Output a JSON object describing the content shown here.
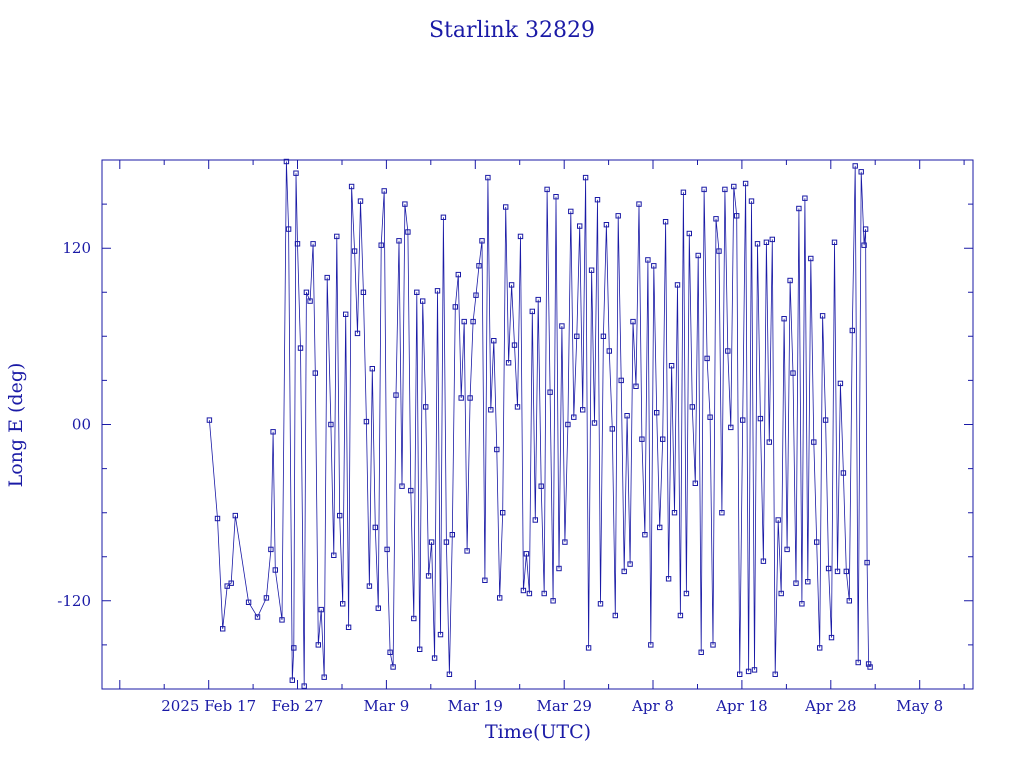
{
  "chart_data": {
    "type": "line",
    "title": "Starlink 32829",
    "xlabel": "Time(UTC)",
    "ylabel": "Long E (deg)",
    "xlim": [
      "2025-02-05",
      "2025-05-14"
    ],
    "ylim": [
      -180,
      180
    ],
    "x_ticks": [
      "2025 Feb 17",
      "Feb 27",
      "Mar 9",
      "Mar 19",
      "Mar 29",
      "Apr 8",
      "Apr 18",
      "Apr 28",
      "May 8"
    ],
    "y_ticks": [
      "-120",
      "00",
      "120"
    ],
    "grid": false,
    "legend": "none",
    "colors": {
      "line": "#1a1aa6",
      "axes": "#1a1aa6",
      "background": "#ffffff"
    },
    "series": [
      {
        "marker": "square",
        "points": [
          [
            "2025-02-17T02:00",
            3
          ],
          [
            "2025-02-18T00:00",
            -64
          ],
          [
            "2025-02-18T14:00",
            -139
          ],
          [
            "2025-02-19T02:00",
            -110
          ],
          [
            "2025-02-19T13:00",
            -108
          ],
          [
            "2025-02-20T00:00",
            -62
          ],
          [
            "2025-02-21T12:00",
            -121
          ],
          [
            "2025-02-22T12:00",
            -131
          ],
          [
            "2025-02-23T12:00",
            -118
          ],
          [
            "2025-02-24T00:00",
            -85
          ],
          [
            "2025-02-24T06:00",
            -5
          ],
          [
            "2025-02-24T12:00",
            -99
          ],
          [
            "2025-02-25T06:00",
            -133
          ],
          [
            "2025-02-25T18:00",
            179
          ],
          [
            "2025-02-26T00:00",
            133
          ],
          [
            "2025-02-26T10:00",
            -174
          ],
          [
            "2025-02-26T14:00",
            -152
          ],
          [
            "2025-02-26T20:00",
            171
          ],
          [
            "2025-02-27T00:00",
            123
          ],
          [
            "2025-02-27T08:00",
            52
          ],
          [
            "2025-02-27T18:00",
            -178
          ],
          [
            "2025-02-28T00:00",
            90
          ],
          [
            "2025-02-28T10:00",
            84
          ],
          [
            "2025-02-28T18:00",
            123
          ],
          [
            "2025-03-01T00:00",
            35
          ],
          [
            "2025-03-01T08:00",
            -150
          ],
          [
            "2025-03-01T16:00",
            -126
          ],
          [
            "2025-03-02T00:00",
            -172
          ],
          [
            "2025-03-02T08:00",
            100
          ],
          [
            "2025-03-02T18:00",
            0
          ],
          [
            "2025-03-03T02:00",
            -89
          ],
          [
            "2025-03-03T10:00",
            128
          ],
          [
            "2025-03-03T18:00",
            -62
          ],
          [
            "2025-03-04T02:00",
            -122
          ],
          [
            "2025-03-04T10:00",
            75
          ],
          [
            "2025-03-04T18:00",
            -138
          ],
          [
            "2025-03-05T02:00",
            162
          ],
          [
            "2025-03-05T10:00",
            118
          ],
          [
            "2025-03-05T18:00",
            62
          ],
          [
            "2025-03-06T02:00",
            152
          ],
          [
            "2025-03-06T10:00",
            90
          ],
          [
            "2025-03-06T18:00",
            2
          ],
          [
            "2025-03-07T02:00",
            -110
          ],
          [
            "2025-03-07T10:00",
            38
          ],
          [
            "2025-03-07T18:00",
            -70
          ],
          [
            "2025-03-08T02:00",
            -125
          ],
          [
            "2025-03-08T10:00",
            122
          ],
          [
            "2025-03-08T18:00",
            159
          ],
          [
            "2025-03-09T02:00",
            -85
          ],
          [
            "2025-03-09T10:00",
            -155
          ],
          [
            "2025-03-09T18:00",
            -165
          ],
          [
            "2025-03-10T02:00",
            20
          ],
          [
            "2025-03-10T10:00",
            125
          ],
          [
            "2025-03-10T18:00",
            -42
          ],
          [
            "2025-03-11T02:00",
            150
          ],
          [
            "2025-03-11T10:00",
            131
          ],
          [
            "2025-03-11T18:00",
            -45
          ],
          [
            "2025-03-12T02:00",
            -132
          ],
          [
            "2025-03-12T10:00",
            90
          ],
          [
            "2025-03-12T18:00",
            -153
          ],
          [
            "2025-03-13T02:00",
            84
          ],
          [
            "2025-03-13T10:00",
            12
          ],
          [
            "2025-03-13T18:00",
            -103
          ],
          [
            "2025-03-14T02:00",
            -80
          ],
          [
            "2025-03-14T10:00",
            -159
          ],
          [
            "2025-03-14T18:00",
            91
          ],
          [
            "2025-03-15T02:00",
            -143
          ],
          [
            "2025-03-15T10:00",
            141
          ],
          [
            "2025-03-15T18:00",
            -80
          ],
          [
            "2025-03-16T02:00",
            -170
          ],
          [
            "2025-03-16T10:00",
            -75
          ],
          [
            "2025-03-16T18:00",
            80
          ],
          [
            "2025-03-17T02:00",
            102
          ],
          [
            "2025-03-17T10:00",
            18
          ],
          [
            "2025-03-17T18:00",
            70
          ],
          [
            "2025-03-18T02:00",
            -86
          ],
          [
            "2025-03-18T10:00",
            18
          ],
          [
            "2025-03-18T18:00",
            70
          ],
          [
            "2025-03-19T02:00",
            88
          ],
          [
            "2025-03-19T10:00",
            108
          ],
          [
            "2025-03-19T18:00",
            125
          ],
          [
            "2025-03-20T02:00",
            -106
          ],
          [
            "2025-03-20T10:00",
            168
          ],
          [
            "2025-03-20T18:00",
            10
          ],
          [
            "2025-03-21T02:00",
            57
          ],
          [
            "2025-03-21T10:00",
            -17
          ],
          [
            "2025-03-21T18:00",
            -118
          ],
          [
            "2025-03-22T02:00",
            -60
          ],
          [
            "2025-03-22T10:00",
            148
          ],
          [
            "2025-03-22T18:00",
            42
          ],
          [
            "2025-03-23T02:00",
            95
          ],
          [
            "2025-03-23T10:00",
            54
          ],
          [
            "2025-03-23T18:00",
            12
          ],
          [
            "2025-03-24T02:00",
            128
          ],
          [
            "2025-03-24T10:00",
            -113
          ],
          [
            "2025-03-24T18:00",
            -88
          ],
          [
            "2025-03-25T02:00",
            -115
          ],
          [
            "2025-03-25T10:00",
            77
          ],
          [
            "2025-03-25T18:00",
            -65
          ],
          [
            "2025-03-26T02:00",
            85
          ],
          [
            "2025-03-26T10:00",
            -42
          ],
          [
            "2025-03-26T18:00",
            -115
          ],
          [
            "2025-03-27T02:00",
            160
          ],
          [
            "2025-03-27T10:00",
            22
          ],
          [
            "2025-03-27T18:00",
            -120
          ],
          [
            "2025-03-28T02:00",
            155
          ],
          [
            "2025-03-28T10:00",
            -98
          ],
          [
            "2025-03-28T18:00",
            67
          ],
          [
            "2025-03-29T02:00",
            -80
          ],
          [
            "2025-03-29T10:00",
            0
          ],
          [
            "2025-03-29T18:00",
            145
          ],
          [
            "2025-03-30T02:00",
            5
          ],
          [
            "2025-03-30T10:00",
            60
          ],
          [
            "2025-03-30T18:00",
            135
          ],
          [
            "2025-03-31T02:00",
            10
          ],
          [
            "2025-03-31T10:00",
            168
          ],
          [
            "2025-03-31T18:00",
            -152
          ],
          [
            "2025-04-01T02:00",
            105
          ],
          [
            "2025-04-01T10:00",
            1
          ],
          [
            "2025-04-01T18:00",
            153
          ],
          [
            "2025-04-02T02:00",
            -122
          ],
          [
            "2025-04-02T10:00",
            60
          ],
          [
            "2025-04-02T18:00",
            136
          ],
          [
            "2025-04-03T02:00",
            50
          ],
          [
            "2025-04-03T10:00",
            -3
          ],
          [
            "2025-04-03T18:00",
            -130
          ],
          [
            "2025-04-04T02:00",
            142
          ],
          [
            "2025-04-04T10:00",
            30
          ],
          [
            "2025-04-04T18:00",
            -100
          ],
          [
            "2025-04-05T02:00",
            6
          ],
          [
            "2025-04-05T10:00",
            -95
          ],
          [
            "2025-04-05T18:00",
            70
          ],
          [
            "2025-04-06T02:00",
            26
          ],
          [
            "2025-04-06T10:00",
            150
          ],
          [
            "2025-04-06T18:00",
            -10
          ],
          [
            "2025-04-07T02:00",
            -75
          ],
          [
            "2025-04-07T10:00",
            112
          ],
          [
            "2025-04-07T18:00",
            -150
          ],
          [
            "2025-04-08T02:00",
            108
          ],
          [
            "2025-04-08T10:00",
            8
          ],
          [
            "2025-04-08T18:00",
            -70
          ],
          [
            "2025-04-09T02:00",
            -10
          ],
          [
            "2025-04-09T10:00",
            138
          ],
          [
            "2025-04-09T18:00",
            -105
          ],
          [
            "2025-04-10T02:00",
            40
          ],
          [
            "2025-04-10T10:00",
            -60
          ],
          [
            "2025-04-10T18:00",
            95
          ],
          [
            "2025-04-11T02:00",
            -130
          ],
          [
            "2025-04-11T10:00",
            158
          ],
          [
            "2025-04-11T18:00",
            -115
          ],
          [
            "2025-04-12T02:00",
            130
          ],
          [
            "2025-04-12T10:00",
            12
          ],
          [
            "2025-04-12T18:00",
            -40
          ],
          [
            "2025-04-13T02:00",
            115
          ],
          [
            "2025-04-13T10:00",
            -155
          ],
          [
            "2025-04-13T18:00",
            160
          ],
          [
            "2025-04-14T02:00",
            45
          ],
          [
            "2025-04-14T10:00",
            5
          ],
          [
            "2025-04-14T18:00",
            -150
          ],
          [
            "2025-04-15T02:00",
            140
          ],
          [
            "2025-04-15T10:00",
            118
          ],
          [
            "2025-04-15T18:00",
            -60
          ],
          [
            "2025-04-16T02:00",
            160
          ],
          [
            "2025-04-16T10:00",
            50
          ],
          [
            "2025-04-16T18:00",
            -2
          ],
          [
            "2025-04-17T02:00",
            162
          ],
          [
            "2025-04-17T10:00",
            142
          ],
          [
            "2025-04-17T18:00",
            -170
          ],
          [
            "2025-04-18T02:00",
            3
          ],
          [
            "2025-04-18T10:00",
            164
          ],
          [
            "2025-04-18T18:00",
            -168
          ],
          [
            "2025-04-19T02:00",
            152
          ],
          [
            "2025-04-19T10:00",
            -167
          ],
          [
            "2025-04-19T18:00",
            123
          ],
          [
            "2025-04-20T02:00",
            4
          ],
          [
            "2025-04-20T10:00",
            -93
          ],
          [
            "2025-04-20T18:00",
            124
          ],
          [
            "2025-04-21T02:00",
            -12
          ],
          [
            "2025-04-21T10:00",
            126
          ],
          [
            "2025-04-21T18:00",
            -170
          ],
          [
            "2025-04-22T02:00",
            -65
          ],
          [
            "2025-04-22T10:00",
            -115
          ],
          [
            "2025-04-22T18:00",
            72
          ],
          [
            "2025-04-23T02:00",
            -85
          ],
          [
            "2025-04-23T10:00",
            98
          ],
          [
            "2025-04-23T18:00",
            35
          ],
          [
            "2025-04-24T02:00",
            -108
          ],
          [
            "2025-04-24T10:00",
            147
          ],
          [
            "2025-04-24T18:00",
            -122
          ],
          [
            "2025-04-25T02:00",
            154
          ],
          [
            "2025-04-25T10:00",
            -107
          ],
          [
            "2025-04-25T18:00",
            113
          ],
          [
            "2025-04-26T02:00",
            -12
          ],
          [
            "2025-04-26T10:00",
            -80
          ],
          [
            "2025-04-26T18:00",
            -152
          ],
          [
            "2025-04-27T02:00",
            74
          ],
          [
            "2025-04-27T10:00",
            3
          ],
          [
            "2025-04-27T18:00",
            -98
          ],
          [
            "2025-04-28T02:00",
            -145
          ],
          [
            "2025-04-28T10:00",
            124
          ],
          [
            "2025-04-28T18:00",
            -100
          ],
          [
            "2025-04-29T02:00",
            28
          ],
          [
            "2025-04-29T10:00",
            -33
          ],
          [
            "2025-04-29T18:00",
            -100
          ],
          [
            "2025-04-30T02:00",
            -120
          ],
          [
            "2025-04-30T10:00",
            64
          ],
          [
            "2025-04-30T18:00",
            176
          ],
          [
            "2025-05-01T02:00",
            -162
          ],
          [
            "2025-05-01T10:00",
            172
          ],
          [
            "2025-05-01T18:00",
            122
          ],
          [
            "2025-05-01T22:00",
            133
          ],
          [
            "2025-05-02T02:00",
            -94
          ],
          [
            "2025-05-02T06:00",
            -163
          ],
          [
            "2025-05-02T10:00",
            -165
          ]
        ]
      }
    ]
  }
}
